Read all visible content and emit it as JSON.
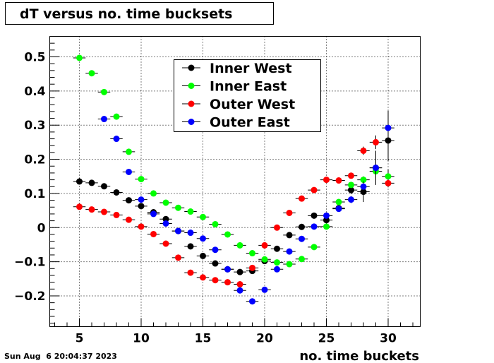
{
  "chart_data": {
    "type": "scatter",
    "title": "dT versus no. time bucksets",
    "xlabel": "no. time buckets",
    "ylabel": "",
    "xlim": [
      2.6,
      32.6
    ],
    "ylim": [
      -0.29,
      0.56
    ],
    "x_ticks": [
      5,
      10,
      15,
      20,
      25,
      30
    ],
    "x_tick_labels": [
      "5",
      "10",
      "15",
      "20",
      "25",
      "30"
    ],
    "y_ticks": [
      -0.2,
      -0.1,
      0,
      0.1,
      0.2,
      0.3,
      0.4,
      0.5
    ],
    "y_tick_labels": [
      "−0.2",
      "−0.1",
      "0",
      "0.1",
      "0.2",
      "0.3",
      "0.4",
      "0.5"
    ],
    "grid": true,
    "legend_position": "top-center",
    "series": [
      {
        "name": "Inner  West",
        "color": "#000000",
        "x": [
          5,
          6,
          7,
          8,
          9,
          10,
          11,
          12,
          13,
          14,
          15,
          16,
          17,
          18,
          19,
          20,
          21,
          22,
          23,
          24,
          25,
          26,
          27,
          28,
          29,
          30
        ],
        "y": [
          0.135,
          0.131,
          0.121,
          0.103,
          0.08,
          0.063,
          0.045,
          0.025,
          -0.01,
          -0.055,
          -0.083,
          -0.105,
          -0.122,
          -0.13,
          -0.127,
          -0.098,
          -0.062,
          -0.022,
          0.002,
          0.035,
          0.022,
          0.057,
          0.11,
          0.105,
          0.175,
          0.255
        ],
        "yerr": [
          0.003,
          0.003,
          0.003,
          0.003,
          0.003,
          0.003,
          0.003,
          0.003,
          0.003,
          0.003,
          0.003,
          0.003,
          0.003,
          0.003,
          0.003,
          0.003,
          0.003,
          0.004,
          0.004,
          0.005,
          0.006,
          0.008,
          0.012,
          0.03,
          0.05,
          0.06
        ]
      },
      {
        "name": "Inner  East",
        "color": "#00ff00",
        "x": [
          5,
          6,
          7,
          8,
          9,
          10,
          11,
          12,
          13,
          14,
          15,
          16,
          17,
          18,
          19,
          20,
          21,
          22,
          23,
          24,
          25,
          26,
          27,
          28,
          29,
          30
        ],
        "y": [
          0.497,
          0.452,
          0.397,
          0.325,
          0.222,
          0.142,
          0.1,
          0.073,
          0.058,
          0.047,
          0.031,
          0.01,
          -0.02,
          -0.052,
          -0.075,
          -0.093,
          -0.102,
          -0.107,
          -0.092,
          -0.057,
          0.003,
          0.075,
          0.125,
          0.14,
          0.165,
          0.15
        ],
        "yerr": [
          0.003,
          0.003,
          0.003,
          0.003,
          0.003,
          0.003,
          0.003,
          0.003,
          0.003,
          0.003,
          0.003,
          0.003,
          0.003,
          0.003,
          0.003,
          0.003,
          0.003,
          0.004,
          0.004,
          0.004,
          0.005,
          0.006,
          0.008,
          0.01,
          0.015,
          0.02
        ]
      },
      {
        "name": "Outer  West",
        "color": "#ff0000",
        "x": [
          5,
          6,
          7,
          8,
          9,
          10,
          11,
          12,
          13,
          14,
          15,
          16,
          17,
          18,
          19,
          20,
          21,
          22,
          23,
          24,
          25,
          26,
          27,
          28,
          29,
          30
        ],
        "y": [
          0.061,
          0.053,
          0.046,
          0.037,
          0.023,
          0.003,
          -0.019,
          -0.047,
          -0.088,
          -0.132,
          -0.146,
          -0.154,
          -0.16,
          -0.166,
          -0.118,
          -0.052,
          0.0,
          0.043,
          0.085,
          0.11,
          0.14,
          0.138,
          0.152,
          0.225,
          0.25,
          0.13
        ],
        "yerr": [
          0.003,
          0.003,
          0.003,
          0.003,
          0.003,
          0.003,
          0.003,
          0.003,
          0.003,
          0.003,
          0.003,
          0.003,
          0.003,
          0.003,
          0.003,
          0.003,
          0.003,
          0.003,
          0.003,
          0.004,
          0.005,
          0.006,
          0.008,
          0.012,
          0.02,
          0.012
        ]
      },
      {
        "name": "Outer  East",
        "color": "#0000ff",
        "x": [
          5,
          6,
          7,
          8,
          9,
          10,
          11,
          12,
          13,
          14,
          15,
          16,
          17,
          18,
          19,
          20,
          21,
          22,
          23,
          24,
          25,
          26,
          27,
          28,
          29,
          30
        ],
        "y": [
          null,
          null,
          0.318,
          0.26,
          0.163,
          0.082,
          0.04,
          0.012,
          -0.01,
          -0.015,
          -0.032,
          -0.065,
          -0.122,
          -0.184,
          -0.216,
          -0.182,
          -0.122,
          -0.07,
          -0.033,
          0.003,
          0.035,
          0.055,
          0.082,
          0.12,
          0.175,
          0.292
        ],
        "yerr": [
          0,
          0,
          0.003,
          0.003,
          0.003,
          0.003,
          0.003,
          0.003,
          0.003,
          0.003,
          0.003,
          0.003,
          0.003,
          0.003,
          0.003,
          0.003,
          0.003,
          0.003,
          0.003,
          0.004,
          0.005,
          0.007,
          0.01,
          0.015,
          0.03,
          0.05
        ]
      }
    ]
  },
  "footer": {
    "timestamp": "Sun Aug  6 20:04:37 2023"
  }
}
